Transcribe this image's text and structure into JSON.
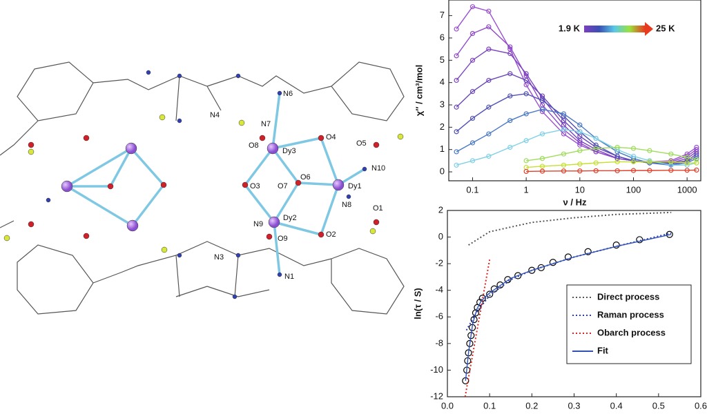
{
  "structure": {
    "atom_labels": [
      "N6",
      "N4",
      "N7",
      "O8",
      "Dy3",
      "O4",
      "O5",
      "N10",
      "O3",
      "O7",
      "O6",
      "Dy1",
      "N8",
      "O1",
      "N9",
      "Dy2",
      "O9",
      "O2",
      "N3",
      "N1"
    ]
  },
  "chart_data": [
    {
      "type": "line",
      "xlabel": "ν / Hz",
      "ylabel": "χ′′ / cm³/mol",
      "xlog": true,
      "xlim": [
        0.036,
        1800
      ],
      "xticks": [
        0.1,
        1,
        10,
        100,
        1000
      ],
      "ylim": [
        -0.4,
        7.7
      ],
      "yticks": [
        0,
        1,
        2,
        3,
        4,
        5,
        6,
        7
      ],
      "grid": false,
      "colorbar": {
        "low_label": "1.9 K",
        "high_label": "25 K",
        "colors": [
          "#7b3fbf",
          "#3a4fb5",
          "#59c9e8",
          "#9be23c",
          "#e83a1e"
        ]
      },
      "x": [
        0.05,
        0.1,
        0.2,
        0.5,
        1,
        2,
        5,
        10,
        20,
        50,
        100,
        200,
        500,
        1000,
        1500
      ],
      "series": [
        {
          "color": "#9b4fd0",
          "marker": "open-circle",
          "style": "solid",
          "values": [
            6.4,
            7.4,
            7.2,
            5.5,
            3.9,
            2.7,
            1.7,
            1.2,
            0.9,
            0.6,
            0.5,
            0.45,
            0.5,
            0.8,
            1.1
          ]
        },
        {
          "color": "#8e48c8",
          "marker": "open-circle",
          "style": "solid",
          "values": [
            5.2,
            6.2,
            6.5,
            5.6,
            4.3,
            3.0,
            1.9,
            1.3,
            0.9,
            0.6,
            0.5,
            0.4,
            0.45,
            0.7,
            1.0
          ]
        },
        {
          "color": "#7d44c0",
          "marker": "open-circle",
          "style": "solid",
          "values": [
            4.1,
            5.0,
            5.5,
            5.3,
            4.4,
            3.3,
            2.1,
            1.4,
            1.0,
            0.6,
            0.5,
            0.4,
            0.4,
            0.6,
            0.9
          ]
        },
        {
          "color": "#6845b8",
          "marker": "open-circle",
          "style": "solid",
          "values": [
            2.9,
            3.6,
            4.1,
            4.4,
            4.1,
            3.4,
            2.3,
            1.6,
            1.1,
            0.7,
            0.5,
            0.4,
            0.4,
            0.5,
            0.8
          ]
        },
        {
          "color": "#5050b4",
          "marker": "open-circle",
          "style": "solid",
          "values": [
            1.8,
            2.4,
            2.9,
            3.4,
            3.5,
            3.2,
            2.5,
            1.8,
            1.2,
            0.7,
            0.5,
            0.4,
            0.35,
            0.45,
            0.7
          ]
        },
        {
          "color": "#4a78c4",
          "marker": "open-circle",
          "style": "solid",
          "values": [
            0.9,
            1.3,
            1.7,
            2.3,
            2.6,
            2.8,
            2.6,
            2.1,
            1.5,
            0.9,
            0.6,
            0.4,
            0.3,
            0.4,
            0.6
          ]
        },
        {
          "color": "#7fd0e6",
          "marker": "open-circle",
          "style": "solid",
          "values": [
            0.3,
            0.5,
            0.7,
            1.1,
            1.4,
            1.7,
            1.9,
            1.8,
            1.5,
            1.0,
            0.7,
            0.5,
            0.3,
            0.3,
            0.4
          ]
        },
        {
          "color": "#9fdc5a",
          "marker": "open-circle",
          "style": "solid",
          "values": [
            null,
            null,
            null,
            null,
            0.5,
            0.6,
            0.8,
            0.95,
            1.05,
            1.1,
            1.05,
            0.95,
            0.8,
            0.65,
            0.55
          ]
        },
        {
          "color": "#c6e030",
          "marker": "open-circle",
          "style": "solid",
          "values": [
            null,
            null,
            null,
            null,
            0.2,
            0.25,
            0.3,
            0.35,
            0.4,
            0.45,
            0.45,
            0.45,
            0.45,
            0.4,
            0.4
          ]
        },
        {
          "color": "#e0402a",
          "marker": "open-circle",
          "style": "solid",
          "values": [
            null,
            null,
            null,
            null,
            0.02,
            0.03,
            0.04,
            0.04,
            0.05,
            0.05,
            0.06,
            0.06,
            0.07,
            0.07,
            0.08
          ]
        }
      ]
    },
    {
      "type": "line",
      "ylabel": "ln(τ / S)",
      "xlog": false,
      "xlim": [
        0,
        0.6
      ],
      "xticks": [
        {
          "value": 0,
          "label": "0.0"
        },
        0.1,
        0.2,
        0.3,
        0.4,
        0.5,
        0.6
      ],
      "ylim": [
        -12,
        2
      ],
      "yticks": [
        -12,
        -10,
        -8,
        -6,
        -4,
        -2,
        0,
        2
      ],
      "grid": false,
      "legend_position": "lower right",
      "series": [
        {
          "color": "#000000",
          "marker": "open-circle",
          "style": "none",
          "x": [
            0.043,
            0.046,
            0.048,
            0.05,
            0.053,
            0.056,
            0.059,
            0.063,
            0.067,
            0.071,
            0.077,
            0.083,
            0.1,
            0.111,
            0.125,
            0.143,
            0.167,
            0.2,
            0.222,
            0.25,
            0.286,
            0.333,
            0.4,
            0.455,
            0.526
          ],
          "values": [
            -10.8,
            -10.0,
            -9.3,
            -8.7,
            -8.0,
            -7.4,
            -6.8,
            -6.2,
            -5.7,
            -5.3,
            -4.9,
            -4.6,
            -4.3,
            -3.9,
            -3.6,
            -3.2,
            -2.9,
            -2.5,
            -2.3,
            -1.9,
            -1.5,
            -1.1,
            -0.6,
            -0.2,
            0.2
          ]
        },
        {
          "name": "Direct process",
          "color": "#555555",
          "style": "dotted",
          "x": [
            0.05,
            0.1,
            0.2,
            0.3,
            0.4,
            0.53
          ],
          "values": [
            -0.6,
            0.4,
            1.1,
            1.45,
            1.7,
            1.85
          ]
        },
        {
          "name": "Raman process",
          "color": "#2c3fb0",
          "style": "dotted",
          "x": [
            0.045,
            0.07,
            0.1,
            0.15,
            0.2,
            0.3,
            0.4,
            0.53
          ],
          "values": [
            -7,
            -5.6,
            -4.4,
            -3.2,
            -2.5,
            -1.5,
            -0.7,
            0.3
          ]
        },
        {
          "name": "Obarch process",
          "color": "#e0201a",
          "style": "dotted",
          "x": [
            0.042,
            0.1
          ],
          "values": [
            -12,
            -1.7
          ]
        },
        {
          "name": "Fit",
          "color": "#3050b8",
          "style": "solid",
          "x": [
            0.043,
            0.05,
            0.06,
            0.07,
            0.08,
            0.1,
            0.15,
            0.2,
            0.3,
            0.4,
            0.53
          ],
          "values": [
            -10.8,
            -8.7,
            -6.5,
            -5.4,
            -4.8,
            -4.2,
            -3.1,
            -2.5,
            -1.5,
            -0.7,
            0.2
          ]
        }
      ]
    }
  ]
}
